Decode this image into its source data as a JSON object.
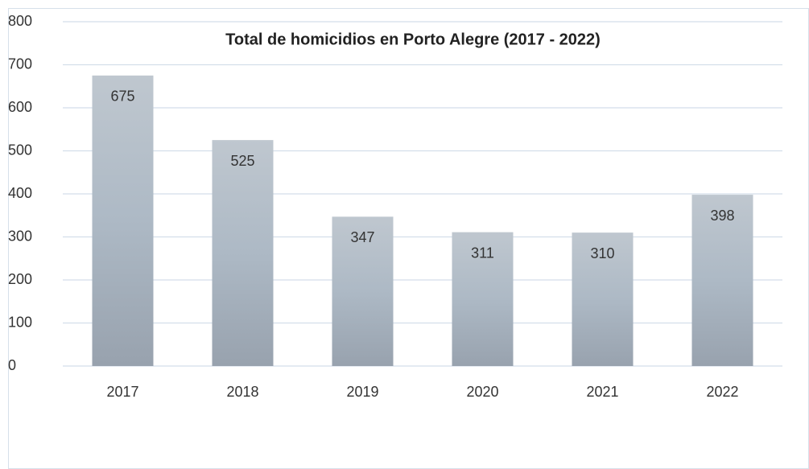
{
  "chart_data": {
    "type": "bar",
    "title": "Total de homicidios en Porto Alegre (2017 - 2022)",
    "categories": [
      "2017",
      "2018",
      "2019",
      "2020",
      "2021",
      "2022"
    ],
    "values": [
      675,
      525,
      347,
      311,
      310,
      398
    ],
    "color": "#a9b3be",
    "ylim": [
      0,
      800
    ],
    "yticks": [
      0,
      100,
      200,
      300,
      400,
      500,
      600,
      700,
      800
    ],
    "grid": true
  }
}
